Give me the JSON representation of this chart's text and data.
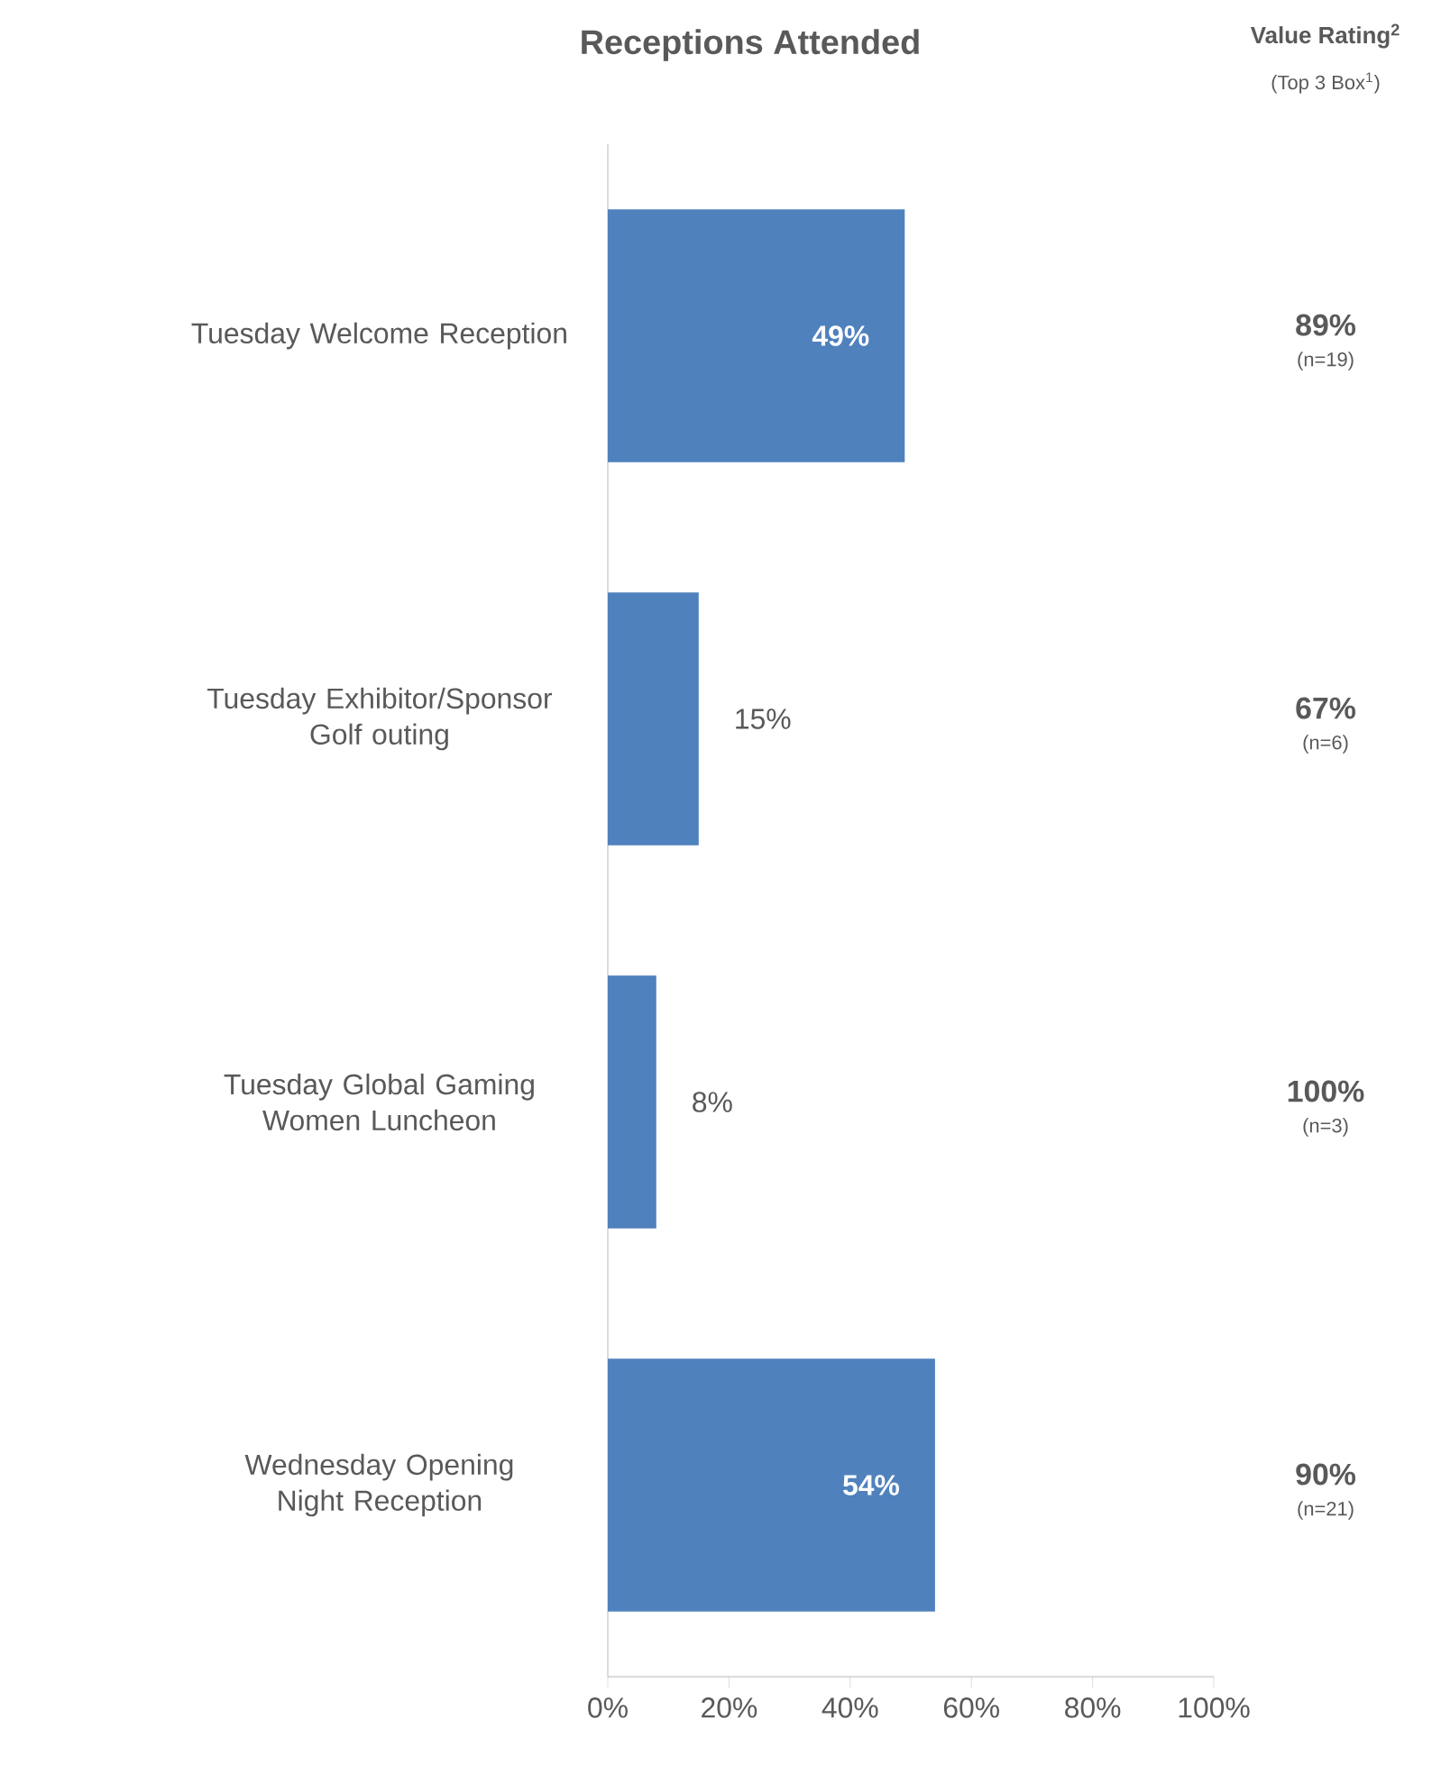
{
  "chart_data": {
    "type": "bar",
    "orientation": "horizontal",
    "title": "Receptions Attended",
    "categories": [
      "Tuesday Welcome Reception",
      "Tuesday Exhibitor/Sponsor Golf outing",
      "Tuesday Global Gaming Women Luncheon",
      "Wednesday Opening Night Reception"
    ],
    "values": [
      49,
      15,
      8,
      54
    ],
    "value_labels": [
      "49%",
      "15%",
      "8%",
      "54%"
    ],
    "color": "#4f81bd",
    "xlim": [
      0,
      100
    ],
    "xticks": [
      {
        "value": 0,
        "label": "0%"
      },
      {
        "value": 20,
        "label": "20%"
      },
      {
        "value": 40,
        "label": "40%"
      },
      {
        "value": 60,
        "label": "60%"
      },
      {
        "value": 80,
        "label": "80%"
      },
      {
        "value": 100,
        "label": "100%"
      }
    ],
    "grid": false,
    "annotations": [
      "Value Rating$^{2}$",
      "(Top 3 Box$^{1}$)",
      "89%",
      "(n=19)",
      "67%",
      "(n=6)",
      "100%",
      "(n=3)",
      "90%",
      "(n=21)"
    ]
  }
}
